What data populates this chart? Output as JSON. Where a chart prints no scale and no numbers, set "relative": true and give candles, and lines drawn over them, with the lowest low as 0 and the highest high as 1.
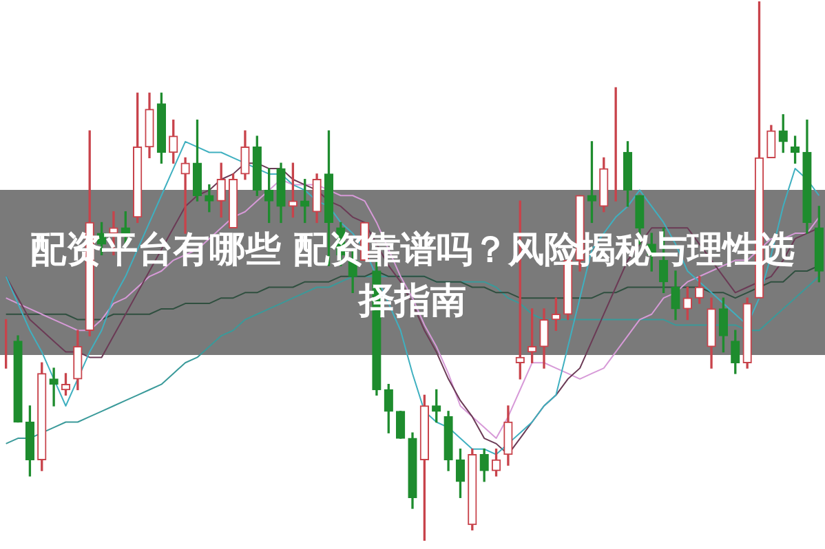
{
  "chart_data": {
    "type": "candlestick",
    "title": "配资平台有哪些 配资靠谱吗？风险揭秘与理性选择指南",
    "relative": true,
    "categories": [
      null,
      null,
      null,
      null,
      null,
      null,
      null,
      null,
      null,
      null,
      null,
      null,
      null,
      null,
      null,
      null,
      null,
      null,
      null,
      null,
      null,
      null,
      null,
      null,
      null,
      null,
      null,
      null,
      null,
      null,
      null,
      null,
      null,
      null,
      null,
      null,
      null,
      null,
      null,
      null,
      null,
      null,
      null,
      null,
      null,
      null,
      null,
      null,
      null,
      null,
      null,
      null,
      null,
      null,
      null,
      null,
      null,
      null,
      null,
      null,
      null,
      null,
      null,
      null,
      null,
      null,
      null,
      null,
      null
    ],
    "ohlc": [
      [
        0.38,
        0.41,
        0.32,
        0.38
      ],
      [
        0.37,
        0.38,
        0.22,
        0.22
      ],
      [
        0.22,
        0.25,
        0.12,
        0.15
      ],
      [
        0.15,
        0.33,
        0.13,
        0.31
      ],
      [
        0.3,
        0.32,
        0.25,
        0.29
      ],
      [
        0.28,
        0.31,
        0.27,
        0.29
      ],
      [
        0.3,
        0.39,
        0.28,
        0.36
      ],
      [
        0.39,
        0.76,
        0.38,
        0.59
      ],
      [
        0.57,
        0.59,
        0.53,
        0.55
      ],
      [
        0.57,
        0.61,
        0.53,
        0.58
      ],
      [
        0.58,
        0.61,
        0.55,
        0.57
      ],
      [
        0.6,
        0.83,
        0.59,
        0.73
      ],
      [
        0.73,
        0.83,
        0.71,
        0.8
      ],
      [
        0.81,
        0.83,
        0.7,
        0.72
      ],
      [
        0.72,
        0.78,
        0.7,
        0.75
      ],
      [
        0.68,
        0.71,
        0.57,
        0.7
      ],
      [
        0.7,
        0.78,
        0.63,
        0.64
      ],
      [
        0.64,
        0.66,
        0.61,
        0.63
      ],
      [
        0.63,
        0.7,
        0.6,
        0.67
      ],
      [
        0.58,
        0.68,
        0.58,
        0.67
      ],
      [
        0.68,
        0.76,
        0.67,
        0.73
      ],
      [
        0.73,
        0.75,
        0.64,
        0.65
      ],
      [
        0.65,
        0.69,
        0.59,
        0.63
      ],
      [
        0.69,
        0.7,
        0.59,
        0.62
      ],
      [
        0.62,
        0.7,
        0.6,
        0.63
      ],
      [
        0.63,
        0.67,
        0.59,
        0.62
      ],
      [
        0.61,
        0.68,
        0.59,
        0.67
      ],
      [
        0.68,
        0.76,
        0.51,
        0.59
      ],
      [
        0.58,
        0.59,
        0.51,
        0.53
      ],
      [
        0.52,
        0.54,
        0.46,
        0.49
      ],
      [
        0.52,
        0.59,
        0.52,
        0.59
      ],
      [
        0.5,
        0.52,
        0.27,
        0.28
      ],
      [
        0.28,
        0.29,
        0.2,
        0.24
      ],
      [
        0.24,
        0.24,
        0.19,
        0.19
      ],
      [
        0.19,
        0.2,
        0.06,
        0.08
      ],
      [
        0.15,
        0.27,
        0,
        0.25
      ],
      [
        0.25,
        0.28,
        0.22,
        0.24
      ],
      [
        0.23,
        0.24,
        0.13,
        0.15
      ],
      [
        0.15,
        0.17,
        0.08,
        0.11
      ],
      [
        0.03,
        0.17,
        0.02,
        0.16
      ],
      [
        0.16,
        0.17,
        0.11,
        0.13
      ],
      [
        0.13,
        0.17,
        0.12,
        0.15
      ],
      [
        0.16,
        0.25,
        0.14,
        0.22
      ],
      [
        0.33,
        0.63,
        0.3,
        0.34
      ],
      [
        0.35,
        0.43,
        0.33,
        0.36
      ],
      [
        0.36,
        0.43,
        0.32,
        0.41
      ],
      [
        0.41,
        0.45,
        0.39,
        0.42
      ],
      [
        0.42,
        0.52,
        0.41,
        0.52
      ],
      [
        0.52,
        0.64,
        0.5,
        0.64
      ],
      [
        0.64,
        0.74,
        0.59,
        0.63
      ],
      [
        0.62,
        0.71,
        0.61,
        0.69
      ],
      [
        0.71,
        0.84,
        0.63,
        0.71
      ],
      [
        0.72,
        0.74,
        0.62,
        0.65
      ],
      [
        0.64,
        0.64,
        0.55,
        0.58
      ],
      [
        0.55,
        0.57,
        0.5,
        0.53
      ],
      [
        0.52,
        0.58,
        0.46,
        0.48
      ],
      [
        0.47,
        0.5,
        0.41,
        0.43
      ],
      [
        0.43,
        0.47,
        0.41,
        0.45
      ],
      [
        0.45,
        0.49,
        0.44,
        0.47
      ],
      [
        0.36,
        0.45,
        0.32,
        0.43
      ],
      [
        0.43,
        0.45,
        0.35,
        0.38
      ],
      [
        0.37,
        0.39,
        0.31,
        0.33
      ],
      [
        0.33,
        0.45,
        0.32,
        0.44
      ],
      [
        0.45,
        1,
        0.45,
        0.71
      ],
      [
        0.71,
        0.77,
        0.71,
        0.76
      ],
      [
        0.76,
        0.79,
        0.72,
        0.74
      ],
      [
        0.73,
        0.75,
        0.7,
        0.72
      ],
      [
        0.72,
        0.78,
        0.57,
        0.59
      ],
      [
        0.58,
        0.62,
        0.48,
        0.5
      ]
    ],
    "colors": [
      "#c8434b",
      "#1e8c2e",
      "#1e8c2e",
      "#c8434b",
      "#1e8c2e",
      "#c8434b",
      "#c8434b",
      "#c8434b",
      "#1e8c2e",
      "#c8434b",
      "#1e8c2e",
      "#c8434b",
      "#c8434b",
      "#1e8c2e",
      "#c8434b",
      "#c8434b",
      "#1e8c2e",
      "#1e8c2e",
      "#c8434b",
      "#c8434b",
      "#c8434b",
      "#1e8c2e",
      "#1e8c2e",
      "#1e8c2e",
      "#c8434b",
      "#1e8c2e",
      "#c8434b",
      "#1e8c2e",
      "#1e8c2e",
      "#1e8c2e",
      "#c8434b",
      "#1e8c2e",
      "#1e8c2e",
      "#1e8c2e",
      "#1e8c2e",
      "#c8434b",
      "#1e8c2e",
      "#1e8c2e",
      "#1e8c2e",
      "#c8434b",
      "#1e8c2e",
      "#c8434b",
      "#c8434b",
      "#c8434b",
      "#c8434b",
      "#c8434b",
      "#c8434b",
      "#c8434b",
      "#c8434b",
      "#1e8c2e",
      "#c8434b",
      "#c8434b",
      "#1e8c2e",
      "#1e8c2e",
      "#1e8c2e",
      "#1e8c2e",
      "#1e8c2e",
      "#c8434b",
      "#c8434b",
      "#c8434b",
      "#1e8c2e",
      "#1e8c2e",
      "#c8434b",
      "#c8434b",
      "#c8434b",
      "#1e8c2e",
      "#1e8c2e",
      "#1e8c2e",
      "#1e8c2e"
    ],
    "series": [
      {
        "type": "line",
        "color": "#3fb0c0",
        "values": [
          0.49,
          0.44,
          0.39,
          0.35,
          0.3,
          0.25,
          0.3,
          0.35,
          0.39,
          0.45,
          0.49,
          0.54,
          0.59,
          0.64,
          0.69,
          0.74,
          0.73,
          0.72,
          0.72,
          0.71,
          0.7,
          0.69,
          0.68,
          0.68,
          0.66,
          0.65,
          0.63,
          0.62,
          0.59,
          0.57,
          0.54,
          0.49,
          0.44,
          0.39,
          0.31,
          0.24,
          0.22,
          0.21,
          0.19,
          0.17,
          0.17,
          0.16,
          0.18,
          0.2,
          0.22,
          0.25,
          0.27,
          0.36,
          0.45,
          0.54,
          0.57,
          0.6,
          0.62,
          0.65,
          0.62,
          0.59,
          0.55,
          0.5,
          0.48,
          0.46,
          0.44,
          0.42,
          0.4,
          0.45,
          0.53,
          0.62,
          0.69,
          0.67,
          0.64
        ]
      },
      {
        "type": "line",
        "color": "#6b3a55",
        "values": [
          0.49,
          0.45,
          0.41,
          0.39,
          0.37,
          0.35,
          0.35,
          0.34,
          0.34,
          0.38,
          0.42,
          0.46,
          0.5,
          0.54,
          0.58,
          0.62,
          0.64,
          0.65,
          0.67,
          0.68,
          0.7,
          0.7,
          0.69,
          0.69,
          0.67,
          0.66,
          0.65,
          0.63,
          0.62,
          0.6,
          0.59,
          0.55,
          0.51,
          0.48,
          0.44,
          0.39,
          0.35,
          0.3,
          0.26,
          0.23,
          0.19,
          0.18,
          0.16,
          0.19,
          0.22,
          0.25,
          0.27,
          0.3,
          0.32,
          0.37,
          0.42,
          0.47,
          0.52,
          0.55,
          0.58,
          0.58,
          0.58,
          0.58,
          0.55,
          0.52,
          0.49,
          0.46,
          0.47,
          0.48,
          0.49,
          0.52,
          0.56,
          0.57,
          0.58
        ]
      },
      {
        "type": "line",
        "color": "#d79ad8",
        "values": [
          0.45,
          0.44,
          0.43,
          0.42,
          0.41,
          0.4,
          0.39,
          0.39,
          0.41,
          0.44,
          0.45,
          0.47,
          0.49,
          0.5,
          0.52,
          0.53,
          0.54,
          0.56,
          0.58,
          0.6,
          0.61,
          0.63,
          0.65,
          0.67,
          0.66,
          0.66,
          0.66,
          0.65,
          0.64,
          0.64,
          0.63,
          0.59,
          0.54,
          0.49,
          0.45,
          0.4,
          0.36,
          0.31,
          0.25,
          0.23,
          0.21,
          0.19,
          0.23,
          0.28,
          0.33,
          0.33,
          0.32,
          0.31,
          0.3,
          0.31,
          0.32,
          0.35,
          0.38,
          0.41,
          0.42,
          0.45,
          0.46,
          0.48,
          0.49,
          0.5,
          0.51,
          0.52,
          0.52,
          0.54,
          0.56,
          0.56,
          0.57,
          0.57,
          0.6
        ]
      },
      {
        "type": "line",
        "color": "#2f4f3f",
        "values": [
          0.42,
          0.42,
          0.42,
          0.42,
          0.42,
          0.42,
          0.41,
          0.41,
          0.41,
          0.42,
          0.42,
          0.42,
          0.42,
          0.43,
          0.43,
          0.44,
          0.44,
          0.44,
          0.45,
          0.45,
          0.46,
          0.46,
          0.47,
          0.47,
          0.47,
          0.48,
          0.48,
          0.48,
          0.49,
          0.49,
          0.49,
          0.5,
          0.49,
          0.49,
          0.49,
          0.49,
          0.48,
          0.48,
          0.48,
          0.47,
          0.47,
          0.46,
          0.46,
          0.45,
          0.45,
          0.45,
          0.45,
          0.45,
          0.45,
          0.45,
          0.46,
          0.46,
          0.47,
          0.47,
          0.47,
          0.47,
          0.47,
          0.47,
          0.47,
          0.46,
          0.46,
          0.45,
          0.46,
          0.47,
          0.48,
          0.48,
          0.5,
          0.5,
          0.51
        ]
      },
      {
        "type": "line",
        "color": "#3a9a9a",
        "values": [
          0.18,
          0.19,
          0.19,
          0.2,
          0.21,
          0.22,
          0.22,
          0.23,
          0.24,
          0.25,
          0.26,
          0.27,
          0.28,
          0.29,
          0.31,
          0.33,
          0.34,
          0.36,
          0.38,
          0.39,
          0.41,
          0.42,
          0.43,
          0.44,
          0.45,
          0.46,
          0.47,
          0.47,
          0.48,
          0.49,
          0.49,
          0.49,
          0.49,
          0.49,
          0.49,
          0.49,
          0.48,
          0.48,
          0.48,
          0.48,
          0.48,
          0.47,
          0.45,
          0.44,
          0.42,
          0.41,
          0.41,
          0.41,
          0.41,
          0.41,
          0.41,
          0.41,
          0.41,
          0.41,
          0.41,
          0.41,
          0.4,
          0.4,
          0.4,
          0.4,
          0.4,
          0.4,
          0.39,
          0.39,
          0.41,
          0.43,
          0.45,
          0.47,
          0.49
        ]
      }
    ]
  }
}
